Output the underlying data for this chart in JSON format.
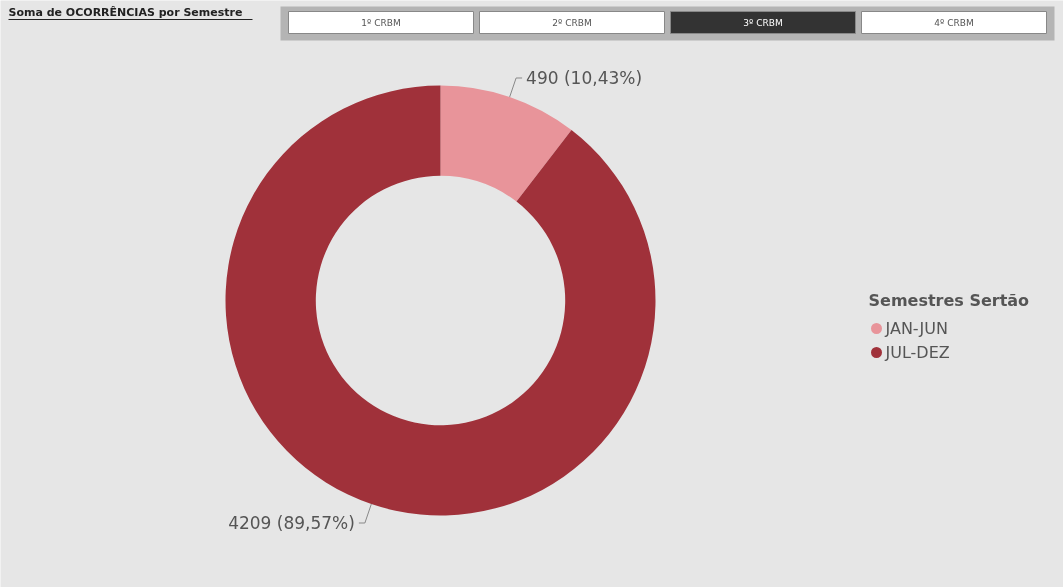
{
  "chart_data": {
    "type": "donut",
    "title": "Soma de OCORRÊNCIAS por Semestre",
    "annotations": [
      "1º CRBM",
      "2º CRBM",
      "3º CRBM",
      "4º CRBM"
    ],
    "legend_title": "Semestres Sertão",
    "legend": "right",
    "categories": [
      "JAN-JUN",
      "JUL-DEZ"
    ],
    "values": [
      490,
      4209
    ],
    "colors": [
      "#e8949a",
      "#a0313a"
    ],
    "value_labels": [
      "490 (10,43%)",
      "4209 (89,57%)"
    ]
  }
}
